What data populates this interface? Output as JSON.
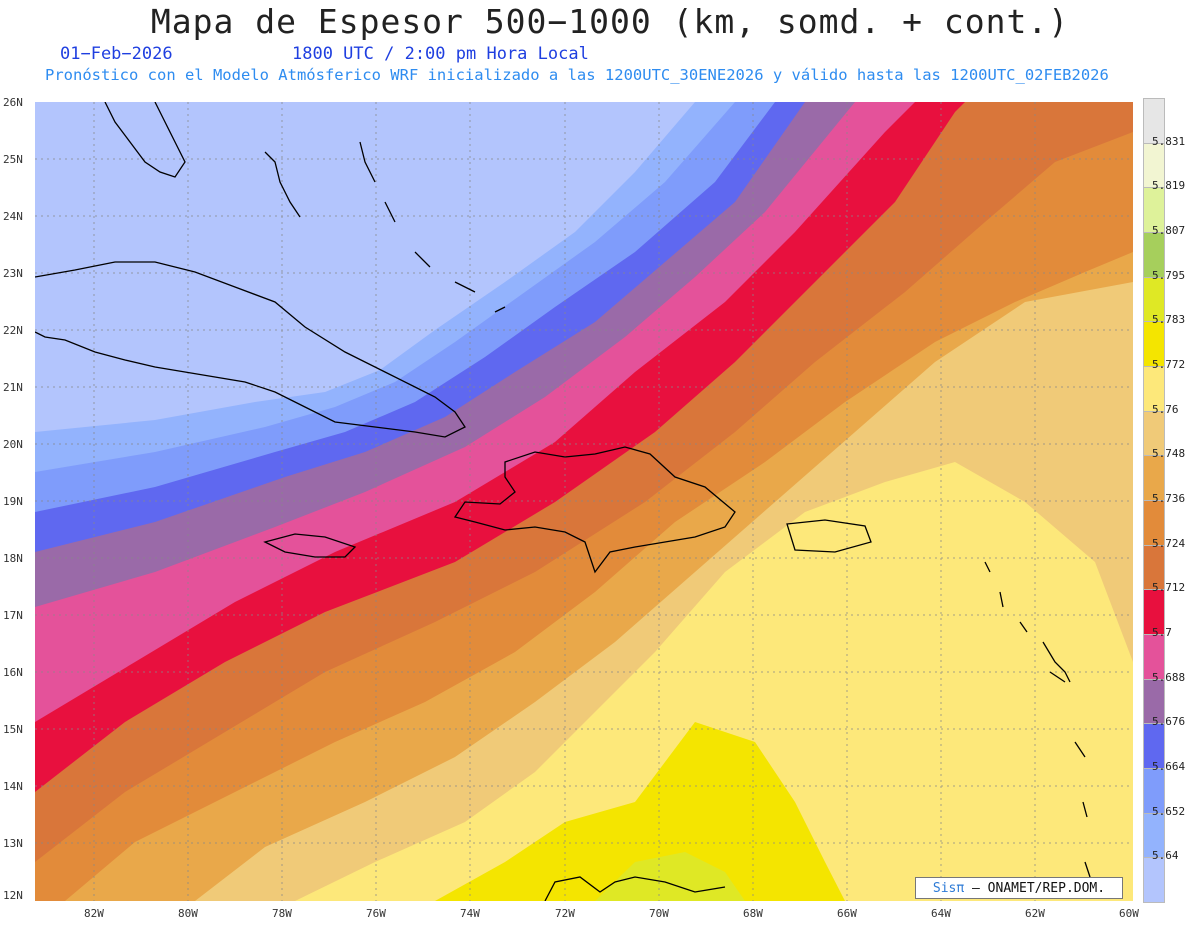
{
  "header": {
    "title": "Mapa de Espesor 500−1000 (km, somd. + cont.)",
    "date": "01−Feb−2026",
    "time": "1800 UTC / 2:00 pm Hora Local",
    "subtitle": "Pronóstico con el Modelo Atmósferico WRF inicializado a las 1200UTC_30ENE2026 y válido hasta las  1200UTC_02FEB2026"
  },
  "map": {
    "lat_labels": [
      "26N",
      "25N",
      "24N",
      "23N",
      "22N",
      "21N",
      "20N",
      "19N",
      "18N",
      "17N",
      "16N",
      "15N",
      "14N",
      "13N",
      "12N"
    ],
    "lon_labels": [
      "82W",
      "80W",
      "78W",
      "76W",
      "74W",
      "72W",
      "70W",
      "68W",
      "66W",
      "64W",
      "62W",
      "60W"
    ],
    "lon_range": [
      -83.3,
      -60.0
    ],
    "lat_range": [
      12.0,
      26.0
    ]
  },
  "colorbar": {
    "labels": [
      "5.831",
      "5.819",
      "5.807",
      "5.795",
      "5.783",
      "5.772",
      "5.76",
      "5.748",
      "5.736",
      "5.724",
      "5.712",
      "5.7",
      "5.688",
      "5.676",
      "5.664",
      "5.652",
      "5.64"
    ],
    "colors": [
      "#e6e6e6",
      "#f2f5d2",
      "#def29a",
      "#a6cf5c",
      "#dfe825",
      "#f4e500",
      "#fde87a",
      "#f0ca78",
      "#e9a84a",
      "#e28b3a",
      "#d9763a",
      "#e8103e",
      "#e4529a",
      "#9a6aa8",
      "#5f68f0",
      "#7f9cfb",
      "#93b3fd",
      "#b3c5fd"
    ]
  },
  "credit": {
    "brand": "Sisπ",
    "org": "– ONAMET/REP.DOM."
  }
}
